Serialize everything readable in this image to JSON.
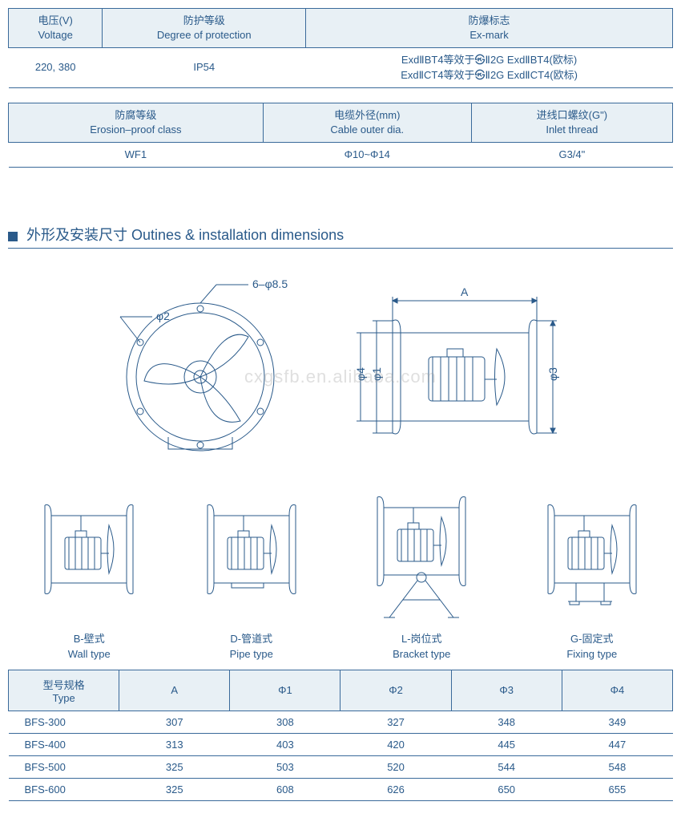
{
  "table1": {
    "headers": [
      {
        "cn": "电压(V)",
        "en": "Voltage"
      },
      {
        "cn": "防护等级",
        "en": "Degree of protection"
      },
      {
        "cn": "防爆标志",
        "en": "Ex-mark"
      }
    ],
    "row": [
      "220, 380",
      "IP54",
      "ExdⅡBT4等效于㉿Ⅱ2G ExdⅡBT4(欧标)\nExdⅡCT4等效于㉿Ⅱ2G ExdⅡCT4(欧标)"
    ]
  },
  "table2": {
    "headers": [
      {
        "cn": "防腐等级",
        "en": "Erosion–proof class"
      },
      {
        "cn": "电缆外径(mm)",
        "en": "Cable outer dia."
      },
      {
        "cn": "进线口螺纹(G\")",
        "en": "Inlet thread"
      }
    ],
    "row": [
      "WF1",
      "Φ10~Φ14",
      "G3/4\""
    ]
  },
  "section_title_cn": "外形及安装尺寸",
  "section_title_en": "Outines & installation dimensions",
  "dim_labels": {
    "phi2": "φ2",
    "holes": "6–φ8.5",
    "A": "A",
    "phi1": "φ1",
    "phi3": "φ3",
    "phi4": "φ4"
  },
  "types": [
    {
      "code": "B-壁式",
      "en": "Wall  type"
    },
    {
      "code": "D-管道式",
      "en": "Pipe  type"
    },
    {
      "code": "L-岗位式",
      "en": "Bracket  type"
    },
    {
      "code": "G-固定式",
      "en": "Fixing  type"
    }
  ],
  "dims_table": {
    "headers": [
      {
        "cn": "型号规格",
        "en": "Type"
      },
      "A",
      "Φ1",
      "Φ2",
      "Φ3",
      "Φ4"
    ],
    "rows": [
      [
        "BFS-300",
        "307",
        "308",
        "327",
        "348",
        "349"
      ],
      [
        "BFS-400",
        "313",
        "403",
        "420",
        "445",
        "447"
      ],
      [
        "BFS-500",
        "325",
        "503",
        "520",
        "544",
        "548"
      ],
      [
        "BFS-600",
        "325",
        "608",
        "626",
        "650",
        "655"
      ]
    ]
  },
  "watermark": "cxgsfb.en.alibaba.com",
  "colors": {
    "line": "#2a5a8a",
    "header_bg": "#e8f0f5",
    "text": "#2a5a8a"
  }
}
